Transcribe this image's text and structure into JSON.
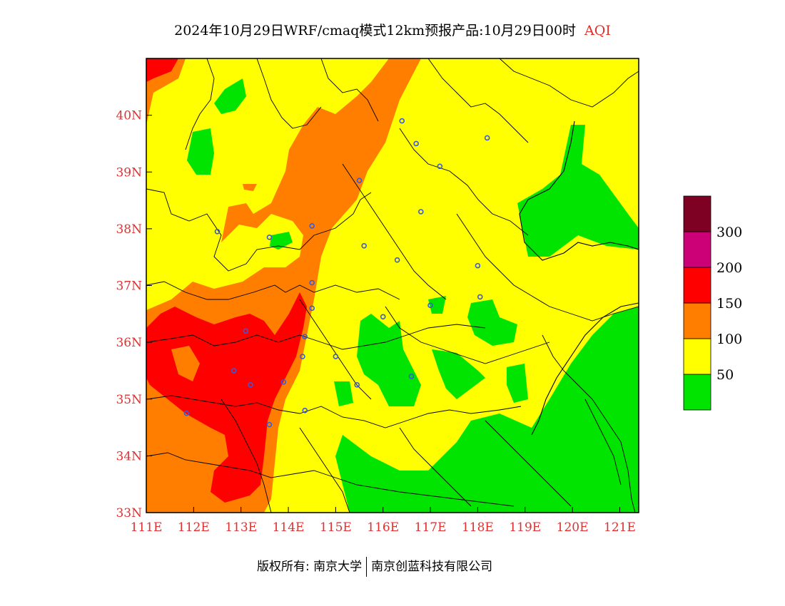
{
  "title": {
    "main": "2024年10月29日WRF/cmaq模式12km预报产品:10月29日00时",
    "variable": "AQI"
  },
  "footer": {
    "left": "版权所有: 南京大学",
    "right": "南京创蓝科技有限公司"
  },
  "axes": {
    "x_ticks": [
      "111E",
      "112E",
      "113E",
      "114E",
      "115E",
      "116E",
      "117E",
      "118E",
      "119E",
      "120E",
      "121E"
    ],
    "y_ticks": [
      "33N",
      "34N",
      "35N",
      "36N",
      "37N",
      "38N",
      "39N",
      "40N"
    ]
  },
  "legend": {
    "bins": [
      {
        "label": "50",
        "color": "#00e400"
      },
      {
        "label": "100",
        "color": "#ffff00"
      },
      {
        "label": "150",
        "color": "#ff7e00"
      },
      {
        "label": "200",
        "color": "#ff0000"
      },
      {
        "label": "300",
        "color": "#cc0077"
      },
      {
        "label": "",
        "color": "#7e0023"
      }
    ]
  },
  "colors": {
    "good": "#00e400",
    "moderate": "#ffff00",
    "usg": "#ff7e00",
    "unhealthy": "#ff0000",
    "very_unhealthy": "#cc0077",
    "hazardous": "#7e0023",
    "city_marker": "#3b5bd9",
    "tick_text": "#e03030"
  },
  "stations": [
    {
      "name": "station-1",
      "lon": 116.4,
      "lat": 39.9
    },
    {
      "name": "station-2",
      "lon": 117.2,
      "lat": 39.1
    },
    {
      "name": "station-3",
      "lon": 118.2,
      "lat": 39.6
    },
    {
      "name": "station-4",
      "lon": 116.7,
      "lat": 39.5
    },
    {
      "name": "station-5",
      "lon": 115.5,
      "lat": 38.85
    },
    {
      "name": "station-6",
      "lon": 116.8,
      "lat": 38.3
    },
    {
      "name": "station-7",
      "lon": 114.5,
      "lat": 38.05
    },
    {
      "name": "station-8",
      "lon": 113.6,
      "lat": 37.85
    },
    {
      "name": "station-9",
      "lon": 112.5,
      "lat": 37.95
    },
    {
      "name": "station-10",
      "lon": 115.6,
      "lat": 37.7
    },
    {
      "name": "station-11",
      "lon": 116.3,
      "lat": 37.45
    },
    {
      "name": "station-12",
      "lon": 118.0,
      "lat": 37.35
    },
    {
      "name": "station-13",
      "lon": 114.5,
      "lat": 37.05
    },
    {
      "name": "station-14",
      "lon": 114.5,
      "lat": 36.6
    },
    {
      "name": "station-15",
      "lon": 116.0,
      "lat": 36.45
    },
    {
      "name": "station-16",
      "lon": 117.0,
      "lat": 36.65
    },
    {
      "name": "station-17",
      "lon": 118.05,
      "lat": 36.8
    },
    {
      "name": "station-18",
      "lon": 113.1,
      "lat": 36.2
    },
    {
      "name": "station-19",
      "lon": 114.35,
      "lat": 36.1
    },
    {
      "name": "station-20",
      "lon": 115.0,
      "lat": 35.75
    },
    {
      "name": "station-21",
      "lon": 114.3,
      "lat": 35.75
    },
    {
      "name": "station-22",
      "lon": 112.85,
      "lat": 35.5
    },
    {
      "name": "station-23",
      "lon": 113.2,
      "lat": 35.25
    },
    {
      "name": "station-24",
      "lon": 113.9,
      "lat": 35.3
    },
    {
      "name": "station-25",
      "lon": 115.45,
      "lat": 35.25
    },
    {
      "name": "station-26",
      "lon": 116.6,
      "lat": 35.4
    },
    {
      "name": "station-27",
      "lon": 114.35,
      "lat": 34.8
    },
    {
      "name": "station-28",
      "lon": 113.6,
      "lat": 34.55
    },
    {
      "name": "station-29",
      "lon": 111.85,
      "lat": 34.75
    }
  ]
}
